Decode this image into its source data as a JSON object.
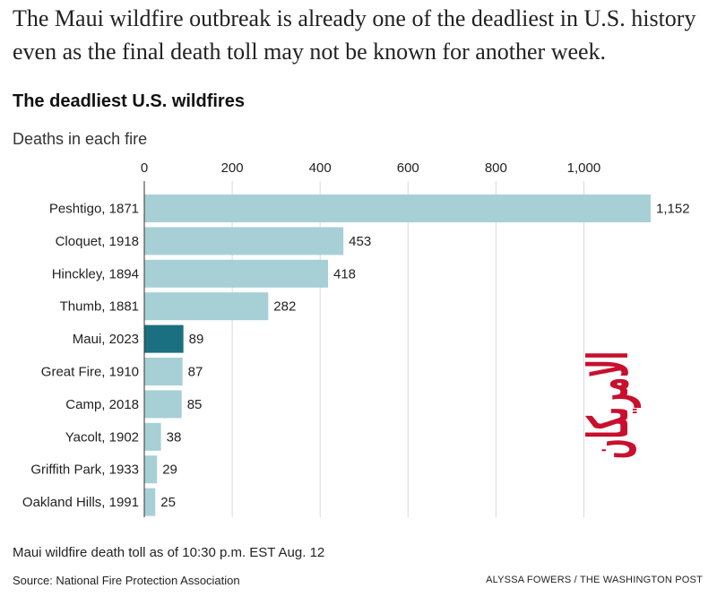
{
  "intro_text": "The Maui wildfire outbreak is already one of the deadliest in U.S. history even as the final death toll may not be known for another week.",
  "chart_data": {
    "type": "bar",
    "orientation": "horizontal",
    "title": "The deadliest U.S. wildfires",
    "subtitle": "Deaths in each fire",
    "categories": [
      "Peshtigo, 1871",
      "Cloquet, 1918",
      "Hinckley, 1894",
      "Thumb, 1881",
      "Maui, 2023",
      "Great Fire, 1910",
      "Camp, 2018",
      "Yacolt, 1902",
      "Griffith Park, 1933",
      "Oakland Hills, 1991"
    ],
    "values": [
      1152,
      453,
      418,
      282,
      89,
      87,
      85,
      38,
      29,
      25
    ],
    "value_labels": [
      "1,152",
      "453",
      "418",
      "282",
      "89",
      "87",
      "85",
      "38",
      "29",
      "25"
    ],
    "highlight": "Maui, 2023",
    "xlim": [
      0,
      1152
    ],
    "xticks": [
      0,
      200,
      400,
      600,
      800,
      1000
    ],
    "xtick_labels": [
      "0",
      "200",
      "400",
      "600",
      "800",
      "1,000"
    ],
    "grid": true,
    "colors": {
      "bar": "#a7d0d6",
      "highlight": "#1a6f80",
      "grid": "#d9d9d9"
    }
  },
  "note": "Maui wildfire death toll as of 10:30 p.m. EST Aug. 12",
  "source": "Source: National Fire Protection Association",
  "credit": "ALYSSA FOWERS / THE WASHINGTON POST",
  "watermark": {
    "text": "الامريكان",
    "color": "#c8102e"
  }
}
